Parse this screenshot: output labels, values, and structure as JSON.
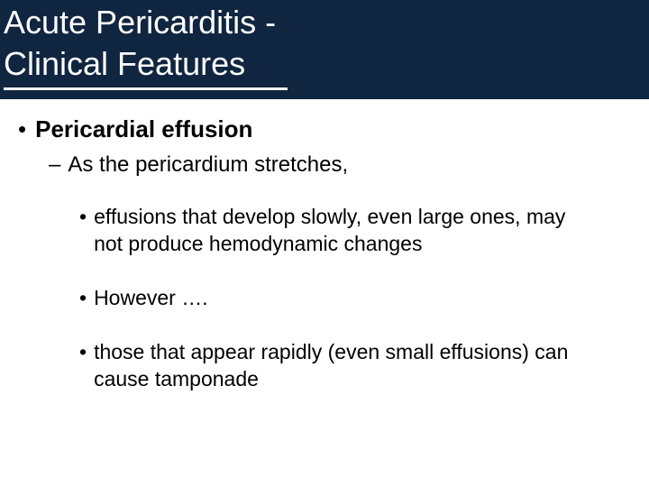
{
  "header": {
    "title_line1": "Acute Pericarditis -",
    "title_line2": "Clinical Features",
    "background_color": "#102540",
    "text_color": "#ffffff",
    "underline_color": "#ffffff",
    "title_fontsize": 36
  },
  "content": {
    "text_color": "#000000",
    "background_color": "#ffffff",
    "level1": {
      "bullet": "•",
      "text": "Pericardial effusion",
      "fontsize": 26,
      "fontweight": "bold"
    },
    "level2": {
      "dash": "–",
      "text": "As the pericardium stretches,",
      "fontsize": 24
    },
    "level3": [
      {
        "bullet": "•",
        "text": "effusions that develop slowly, even large ones, may not produce hemodynamic changes"
      },
      {
        "bullet": "•",
        "text": "However …."
      },
      {
        "bullet": "•",
        "text": "those that appear rapidly (even small effusions) can cause tamponade"
      }
    ],
    "level3_fontsize": 23
  }
}
